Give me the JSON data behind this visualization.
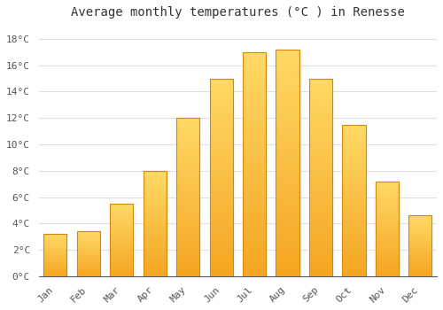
{
  "months": [
    "Jan",
    "Feb",
    "Mar",
    "Apr",
    "May",
    "Jun",
    "Jul",
    "Aug",
    "Sep",
    "Oct",
    "Nov",
    "Dec"
  ],
  "values": [
    3.2,
    3.4,
    5.5,
    8.0,
    12.0,
    15.0,
    17.0,
    17.2,
    15.0,
    11.5,
    7.2,
    4.6
  ],
  "bar_color_bottom": "#F5A623",
  "bar_color_top": "#FFD966",
  "bar_edge_color": "#D4870A",
  "title": "Average monthly temperatures (°C ) in Renesse",
  "ylim": [
    0,
    19
  ],
  "yticks": [
    0,
    2,
    4,
    6,
    8,
    10,
    12,
    14,
    16,
    18
  ],
  "background_color": "#ffffff",
  "grid_color": "#e0e0e0",
  "title_fontsize": 10,
  "tick_fontsize": 8,
  "font_family": "monospace",
  "bar_width": 0.7
}
